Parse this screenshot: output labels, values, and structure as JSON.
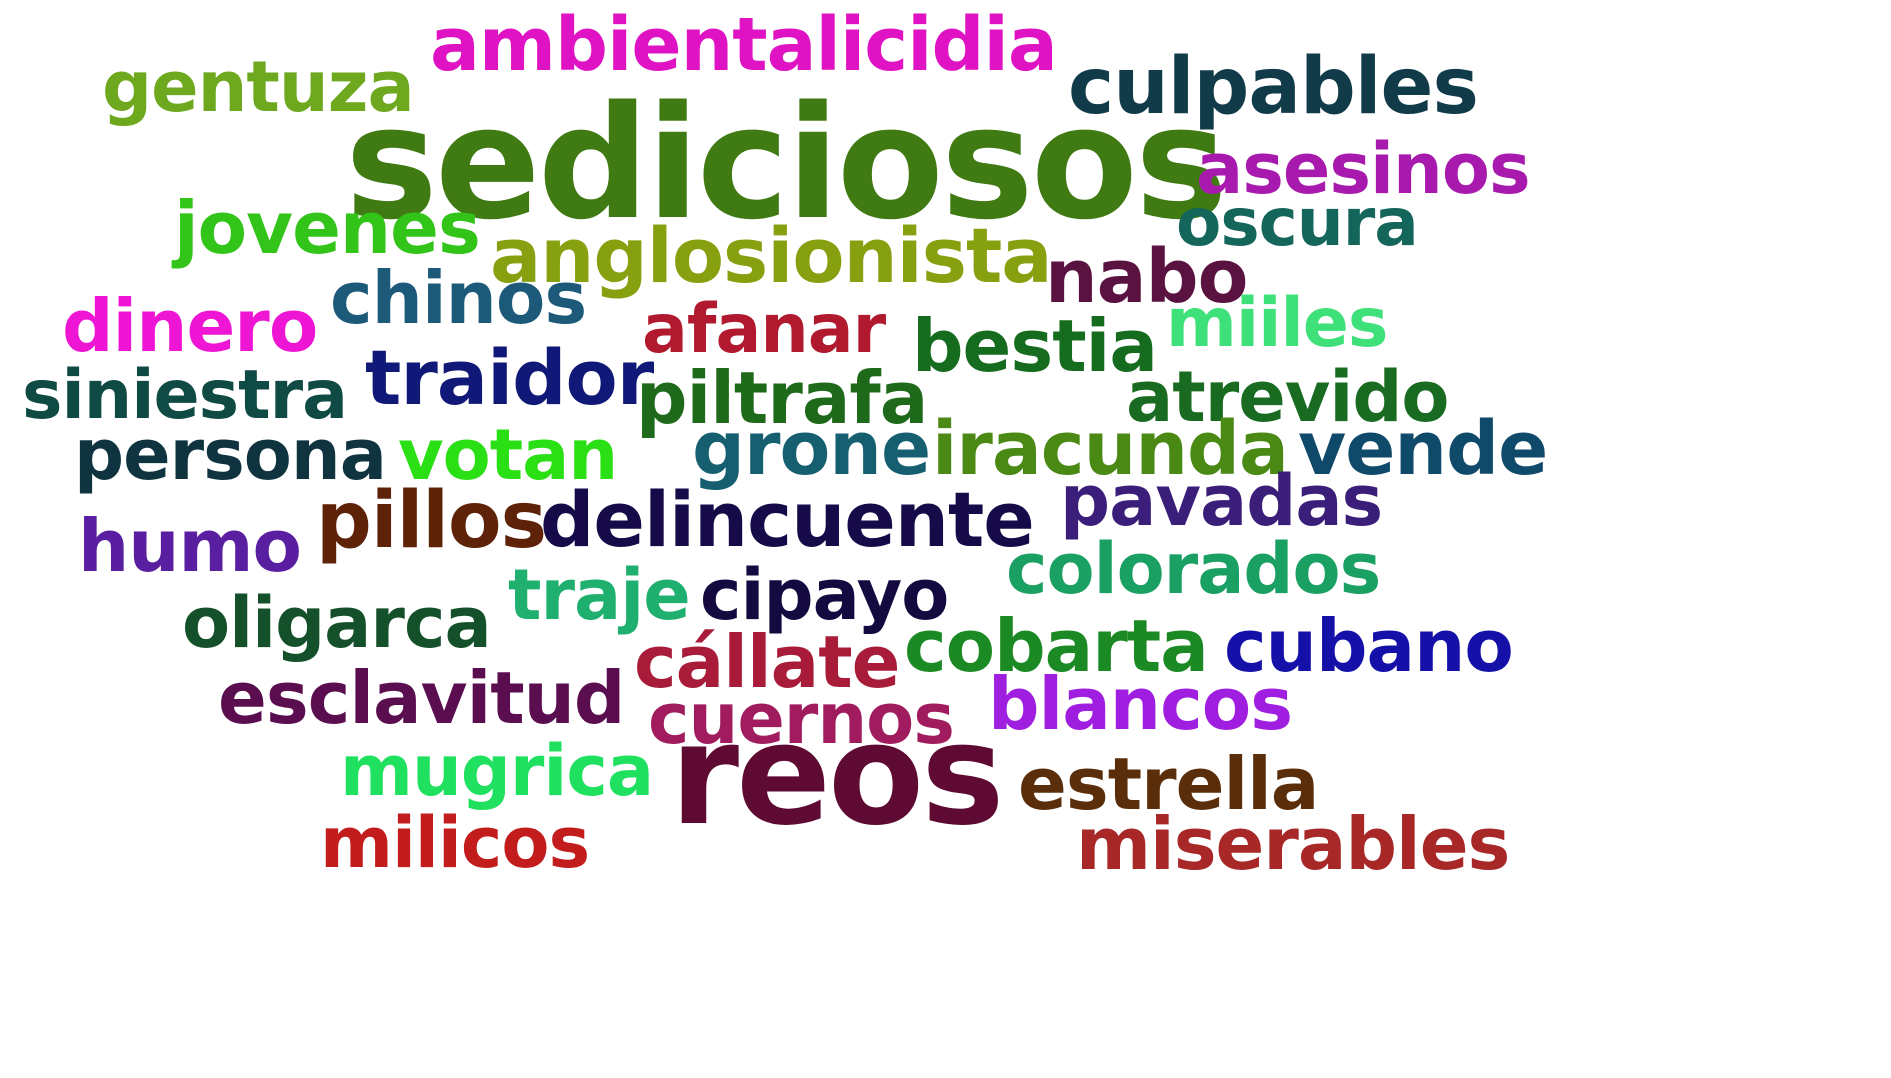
{
  "words": [
    {
      "text": "ambientalicidia",
      "color": "#e013c4"
    },
    {
      "text": "gentuza",
      "color": "#6ea81e"
    },
    {
      "text": "culpables",
      "color": "#123b4a"
    },
    {
      "text": "sediciosos",
      "color": "#3f7a12"
    },
    {
      "text": "asesinos",
      "color": "#a81aad"
    },
    {
      "text": "jovenes",
      "color": "#33c41a"
    },
    {
      "text": "oscura",
      "color": "#14655a"
    },
    {
      "text": "anglosionista",
      "color": "#86a010"
    },
    {
      "text": "nabo",
      "color": "#5a1240"
    },
    {
      "text": "chinos",
      "color": "#1d5a7a"
    },
    {
      "text": "dinero",
      "color": "#ee15d5"
    },
    {
      "text": "afanar",
      "color": "#b0192e"
    },
    {
      "text": "miiles",
      "color": "#3ee07a"
    },
    {
      "text": "bestia",
      "color": "#156b1e"
    },
    {
      "text": "traidor",
      "color": "#101878"
    },
    {
      "text": "siniestra",
      "color": "#0f4a45"
    },
    {
      "text": "piltrafa",
      "color": "#1e6a1a"
    },
    {
      "text": "atrevido",
      "color": "#186b20"
    },
    {
      "text": "persona",
      "color": "#0f3440"
    },
    {
      "text": "votan",
      "color": "#2ae014"
    },
    {
      "text": "grone",
      "color": "#155f70"
    },
    {
      "text": "iracunda",
      "color": "#4a8a14"
    },
    {
      "text": "vende",
      "color": "#104a6a"
    },
    {
      "text": "pavadas",
      "color": "#3a1e7a"
    },
    {
      "text": "humo",
      "color": "#5a1ea0"
    },
    {
      "text": "pillos",
      "color": "#5e2208"
    },
    {
      "text": "delincuente",
      "color": "#160a48"
    },
    {
      "text": "colorados",
      "color": "#1aa062"
    },
    {
      "text": "traje",
      "color": "#1fb070"
    },
    {
      "text": "oligarca",
      "color": "#14502a"
    },
    {
      "text": "cipayo",
      "color": "#140a40"
    },
    {
      "text": "cobarta",
      "color": "#1b8a25"
    },
    {
      "text": "cubano",
      "color": "#1410a8"
    },
    {
      "text": "cállate",
      "color": "#a81c3a"
    },
    {
      "text": "esclavitud",
      "color": "#5a0e50"
    },
    {
      "text": "cuernos",
      "color": "#a01c5e"
    },
    {
      "text": "blancos",
      "color": "#a01ee0"
    },
    {
      "text": "mugrica",
      "color": "#20e060"
    },
    {
      "text": "reos",
      "color": "#5e0a32"
    },
    {
      "text": "estrella",
      "color": "#5a2e0a"
    },
    {
      "text": "milicos",
      "color": "#c21c1c"
    },
    {
      "text": "miserables",
      "color": "#a82828"
    }
  ]
}
